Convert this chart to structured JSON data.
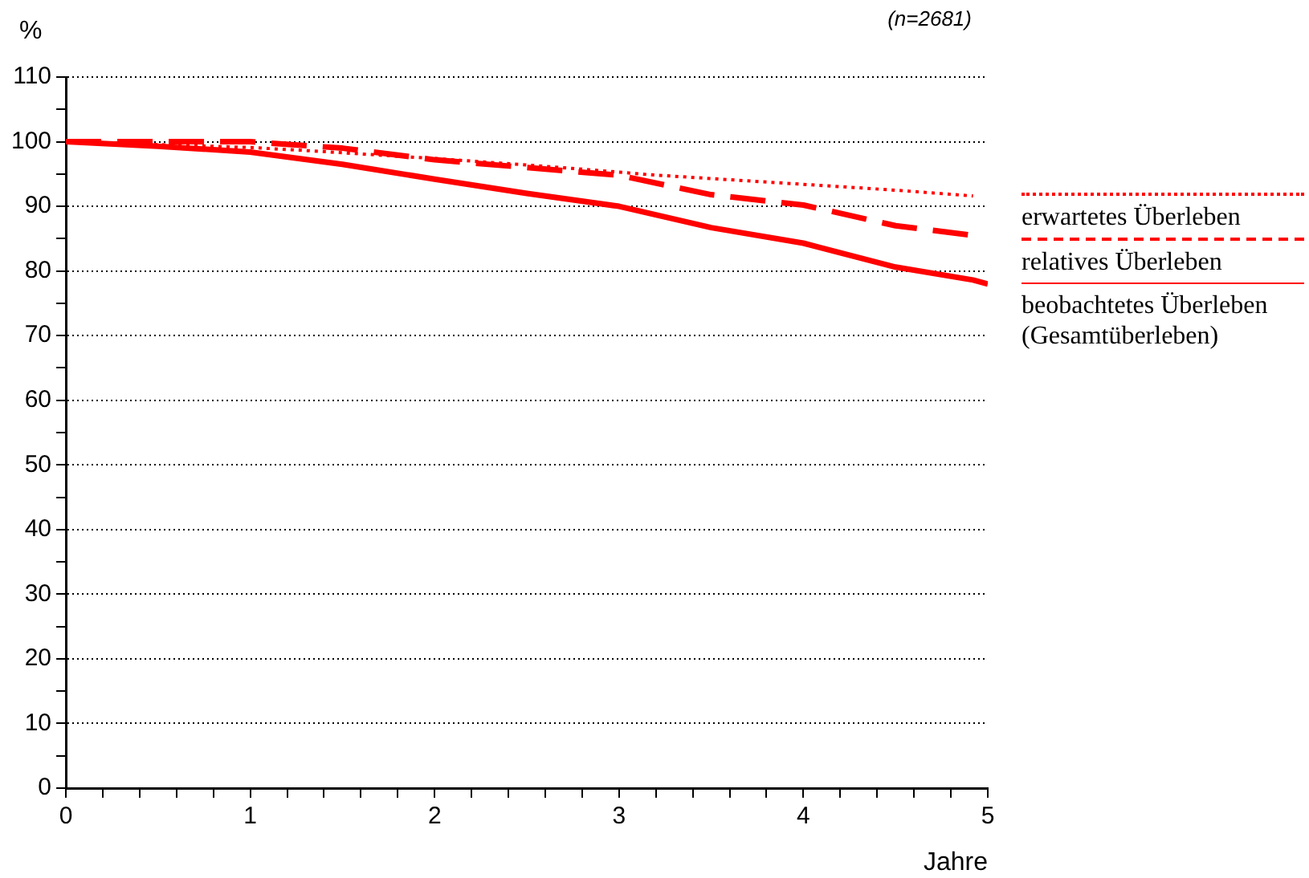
{
  "chart_data": {
    "type": "line",
    "ylabel": "%",
    "xlabel": "Jahre",
    "annotations": [
      "(n=2681)"
    ],
    "series": [
      {
        "name": "erwartetes Überleben",
        "color": "#ff0000",
        "line_style": "dotted",
        "x": [
          0,
          1,
          1.32,
          2,
          2.5,
          3,
          3.16,
          3.5,
          4,
          4.5,
          4.92
        ],
        "values": [
          100,
          99.1,
          98.6,
          97.4,
          96.4,
          95.3,
          94.9,
          94.3,
          93.4,
          92.5,
          91.6
        ]
      },
      {
        "name": "relatives Überleben",
        "color": "#ff0000",
        "line_style": "dashed",
        "x": [
          0,
          0.5,
          1,
          1.5,
          2,
          2.5,
          3,
          3.5,
          4,
          4.5,
          4.92
        ],
        "values": [
          100,
          100,
          100,
          99,
          97.2,
          96,
          94.8,
          91.8,
          90.2,
          87,
          85.5
        ]
      },
      {
        "name": "beobachtetes Überleben (Gesamtüberleben)",
        "color": "#ff0000",
        "line_style": "solid",
        "x": [
          0,
          0.5,
          1,
          1.5,
          2,
          2.5,
          3,
          3.5,
          4,
          4.5,
          4.92,
          5
        ],
        "values": [
          100,
          99.3,
          98.4,
          96.5,
          94.2,
          92,
          90,
          86.7,
          84.3,
          80.6,
          78.6,
          78
        ]
      }
    ],
    "xlim": [
      0,
      5
    ],
    "xticks": [
      0,
      {
        "value": 0.2,
        "label": null
      },
      {
        "value": 0.4,
        "label": null
      },
      {
        "value": 0.6,
        "label": null
      },
      {
        "value": 0.8,
        "label": null
      },
      1,
      {
        "value": 1.2,
        "label": null
      },
      {
        "value": 1.4,
        "label": null
      },
      {
        "value": 1.6,
        "label": null
      },
      {
        "value": 1.8,
        "label": null
      },
      2,
      {
        "value": 2.2,
        "label": null
      },
      {
        "value": 2.4,
        "label": null
      },
      {
        "value": 2.6,
        "label": null
      },
      {
        "value": 2.8,
        "label": null
      },
      3,
      {
        "value": 3.2,
        "label": null
      },
      {
        "value": 3.4,
        "label": null
      },
      {
        "value": 3.6,
        "label": null
      },
      {
        "value": 3.8,
        "label": null
      },
      4,
      {
        "value": 4.2,
        "label": null
      },
      {
        "value": 4.4,
        "label": null
      },
      {
        "value": 4.6,
        "label": null
      },
      {
        "value": 4.8,
        "label": null
      },
      5
    ],
    "ylim": [
      0,
      110
    ],
    "yticks": [
      0,
      {
        "value": 5,
        "label": null
      },
      10,
      {
        "value": 15,
        "label": null
      },
      20,
      {
        "value": 25,
        "label": null
      },
      30,
      {
        "value": 35,
        "label": null
      },
      40,
      {
        "value": 45,
        "label": null
      },
      50,
      {
        "value": 55,
        "label": null
      },
      60,
      {
        "value": 65,
        "label": null
      },
      70,
      {
        "value": 75,
        "label": null
      },
      80,
      {
        "value": 85,
        "label": null
      },
      90,
      {
        "value": 95,
        "label": null
      },
      100,
      {
        "value": 105,
        "label": null
      },
      110
    ],
    "grid": "y",
    "legend": "right",
    "marker": "none"
  }
}
